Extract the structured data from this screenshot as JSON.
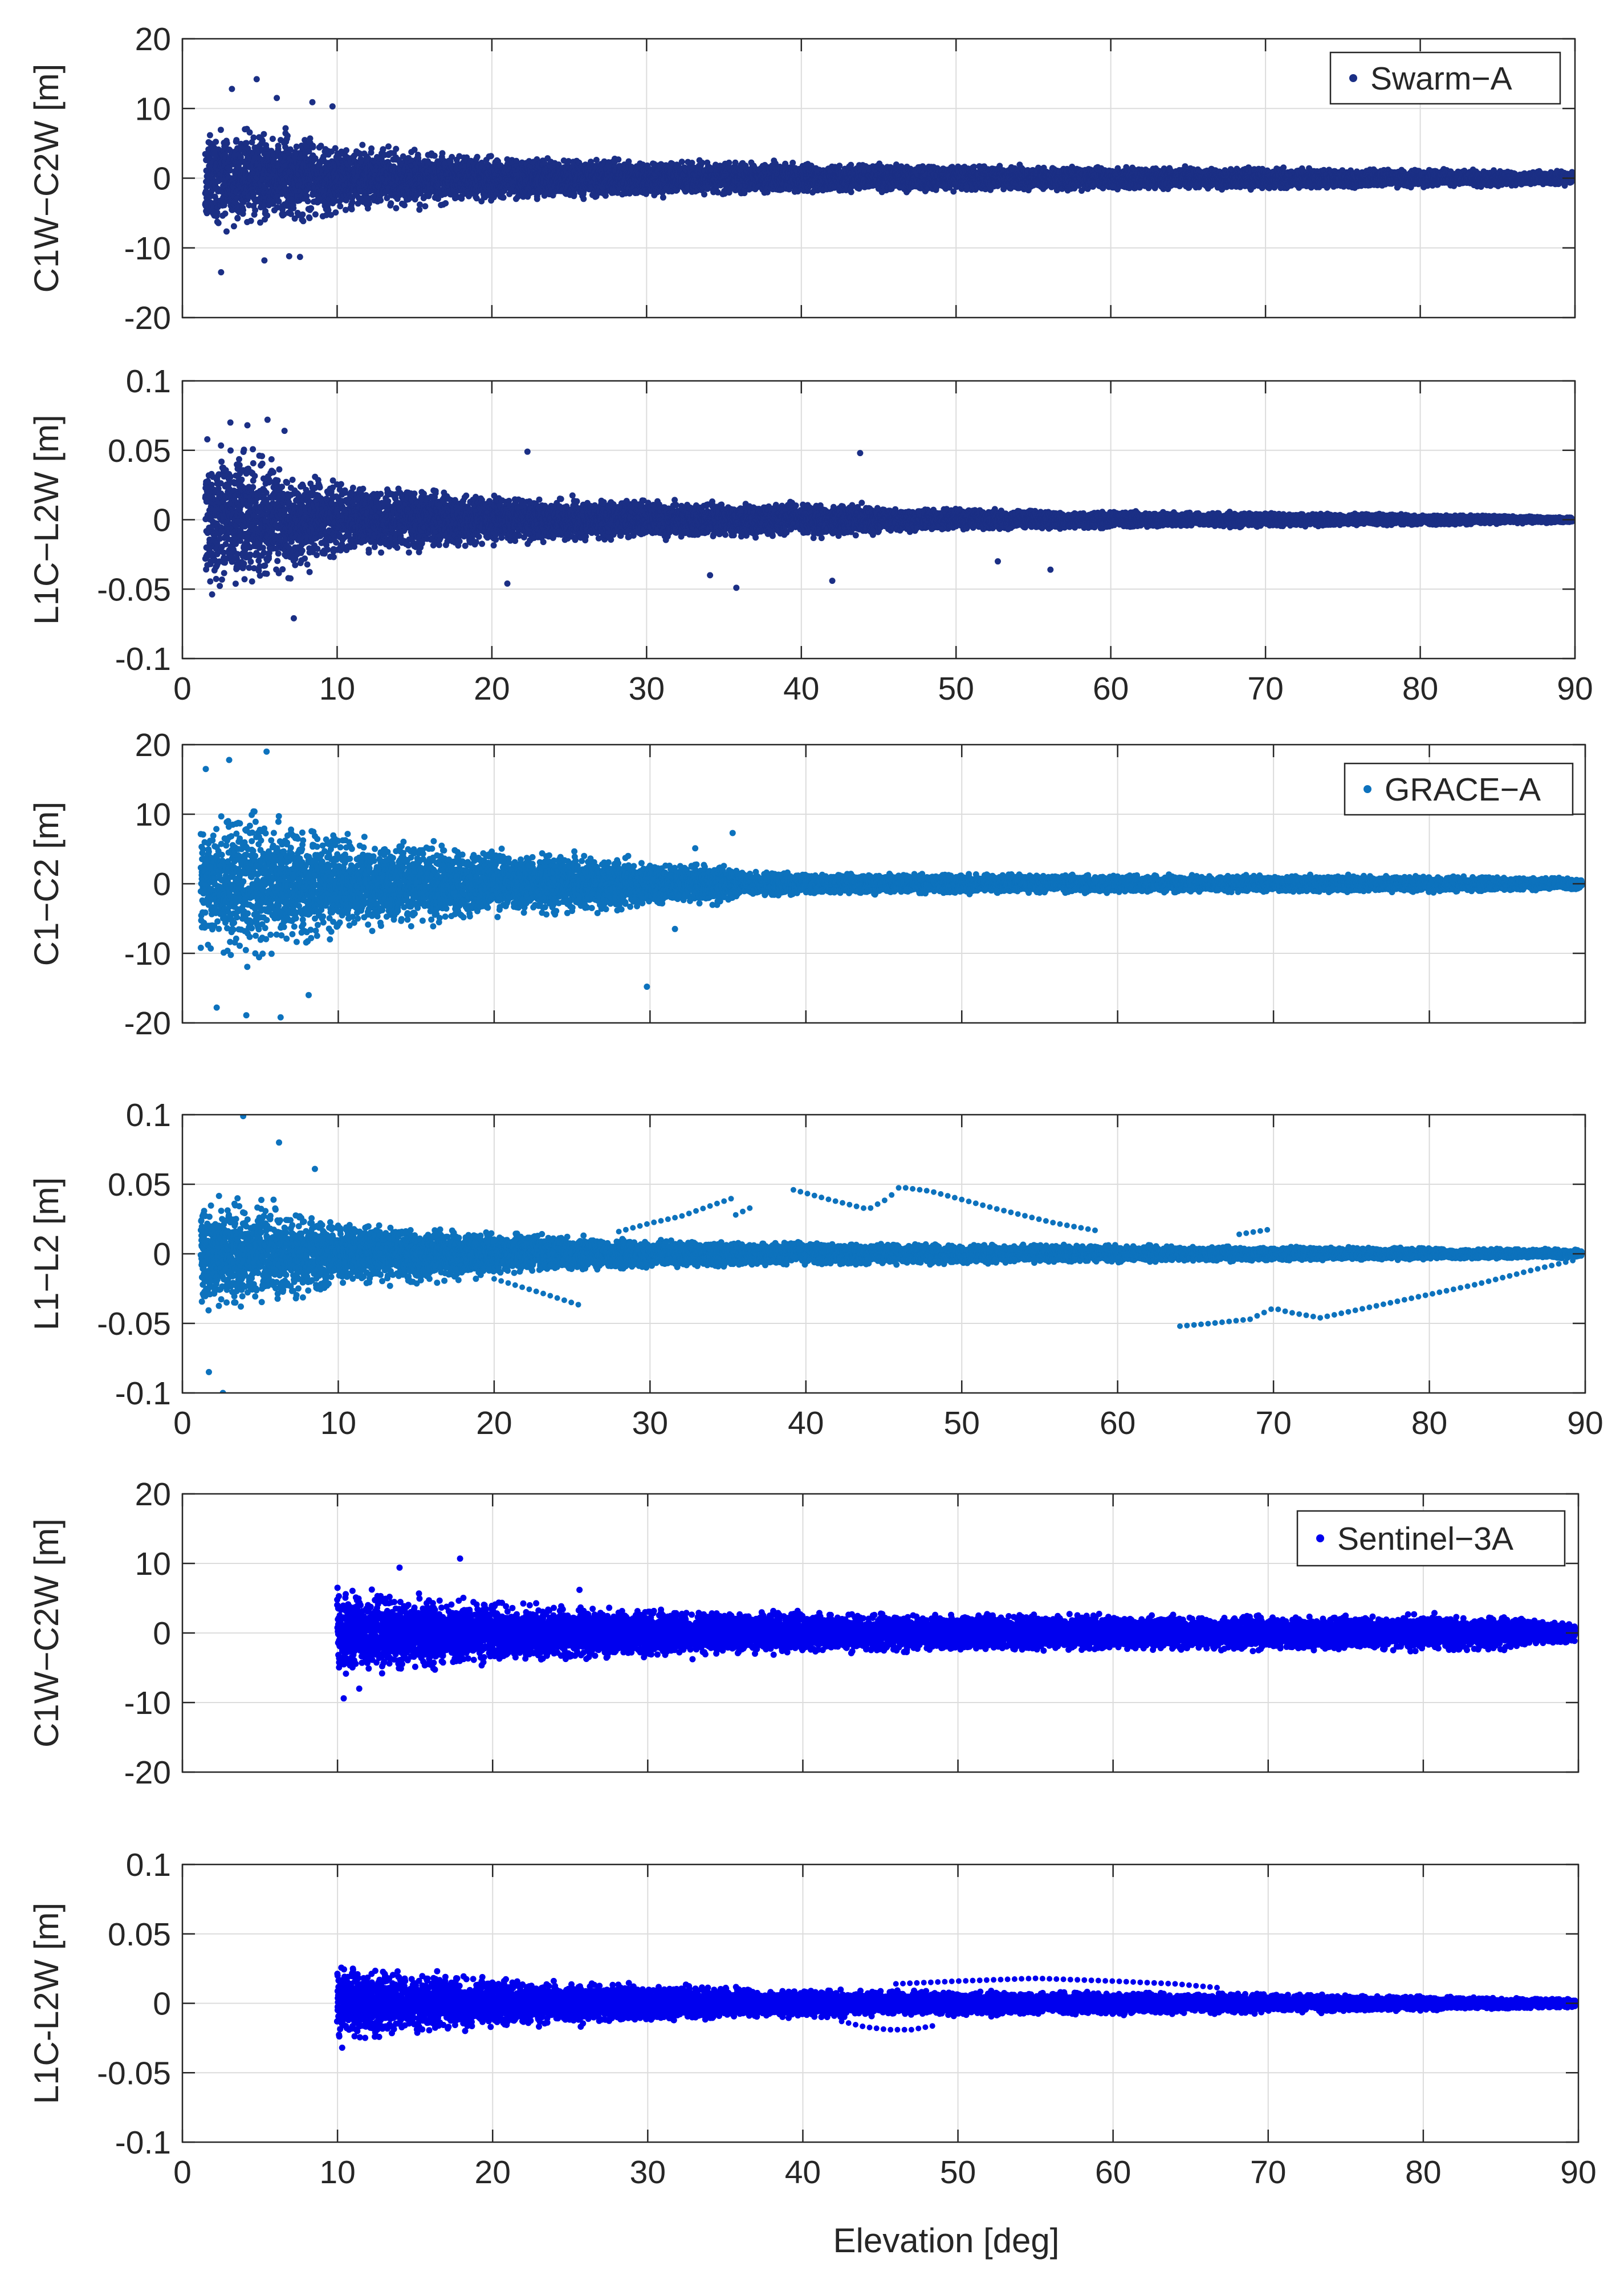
{
  "figure": {
    "xlabel": "Elevation [deg]"
  },
  "chart_data": [
    {
      "type": "scatter",
      "satellite": "Swarm-A",
      "legend": "Swarm−A",
      "color": "#1b2f85",
      "ylabel": "C1W−C2W [m]",
      "xlim": [
        0,
        90
      ],
      "ylim": [
        -20,
        20
      ],
      "xticks": [
        0,
        10,
        20,
        30,
        40,
        50,
        60,
        70,
        80,
        90
      ],
      "yticks": [
        20,
        10,
        0,
        -10,
        -20
      ],
      "ytick_labels": [
        "20",
        "10",
        "0",
        "-10",
        "-20"
      ],
      "show_xtick_labels": false,
      "envelope": {
        "x_start": 1.5,
        "x_end": 89.8,
        "half_width": [
          [
            1.5,
            7.5
          ],
          [
            7,
            7.0
          ],
          [
            10,
            5.0
          ],
          [
            20,
            3.2
          ],
          [
            30,
            2.6
          ],
          [
            40,
            2.2
          ],
          [
            50,
            1.9
          ],
          [
            60,
            1.7
          ],
          [
            70,
            1.5
          ],
          [
            80,
            1.3
          ],
          [
            90,
            1.0
          ]
        ]
      },
      "outliers": [
        [
          2.5,
          -13.5
        ],
        [
          3.2,
          12.8
        ],
        [
          4.8,
          14.2
        ],
        [
          6.1,
          11.5
        ],
        [
          5.3,
          -11.8
        ],
        [
          7.6,
          -11.3
        ],
        [
          8.4,
          10.9
        ],
        [
          9.7,
          10.3
        ],
        [
          6.9,
          -11.2
        ]
      ]
    },
    {
      "type": "scatter",
      "satellite": "Swarm-A",
      "legend": "",
      "color": "#1b2f85",
      "ylabel": "L1C−L2W [m]",
      "xlim": [
        0,
        90
      ],
      "ylim": [
        -0.1,
        0.1
      ],
      "xticks": [
        0,
        10,
        20,
        30,
        40,
        50,
        60,
        70,
        80,
        90
      ],
      "yticks": [
        0.1,
        0.05,
        0,
        -0.05,
        -0.1
      ],
      "ytick_labels": [
        "0.1",
        "0.05",
        "0",
        "-0.05",
        "-0.1"
      ],
      "show_xtick_labels": true,
      "envelope": {
        "x_start": 1.5,
        "x_end": 89.8,
        "half_width": [
          [
            1.5,
            0.055
          ],
          [
            5,
            0.05
          ],
          [
            10,
            0.028
          ],
          [
            20,
            0.018
          ],
          [
            30,
            0.014
          ],
          [
            40,
            0.012
          ],
          [
            44,
            0.013
          ],
          [
            45,
            0.009
          ],
          [
            50,
            0.008
          ],
          [
            60,
            0.006
          ],
          [
            70,
            0.005
          ],
          [
            80,
            0.004
          ],
          [
            90,
            0.002
          ]
        ]
      },
      "outliers": [
        [
          3.1,
          0.07
        ],
        [
          4.2,
          0.068
        ],
        [
          5.5,
          0.072
        ],
        [
          6.6,
          0.064
        ],
        [
          7.2,
          -0.071
        ],
        [
          22.3,
          0.049
        ],
        [
          21.0,
          -0.046
        ],
        [
          34.1,
          -0.04
        ],
        [
          43.8,
          0.048
        ],
        [
          42.0,
          -0.044
        ],
        [
          35.8,
          -0.049
        ],
        [
          52.7,
          -0.03
        ],
        [
          56.1,
          -0.036
        ]
      ]
    },
    {
      "type": "scatter",
      "satellite": "GRACE-A",
      "legend": "GRACE−A",
      "color": "#0d72bd",
      "ylabel": "C1−C2 [m]",
      "xlim": [
        0,
        90
      ],
      "ylim": [
        -20,
        20
      ],
      "xticks": [
        0,
        10,
        20,
        30,
        40,
        50,
        60,
        70,
        80,
        90
      ],
      "yticks": [
        20,
        10,
        0,
        -10,
        -20
      ],
      "ytick_labels": [
        "20",
        "10",
        "0",
        "-10",
        "-20"
      ],
      "show_xtick_labels": false,
      "envelope": {
        "x_start": 1.2,
        "x_end": 89.8,
        "half_width": [
          [
            1.2,
            10.0
          ],
          [
            5,
            11.0
          ],
          [
            10,
            7.5
          ],
          [
            15,
            6.0
          ],
          [
            20,
            5.0
          ],
          [
            25,
            4.5
          ],
          [
            28,
            4.0
          ],
          [
            30,
            3.0
          ],
          [
            35,
            2.8
          ],
          [
            36,
            1.8
          ],
          [
            40,
            1.5
          ],
          [
            50,
            1.4
          ],
          [
            60,
            1.3
          ],
          [
            70,
            1.2
          ],
          [
            80,
            1.2
          ],
          [
            90,
            0.8
          ]
        ]
      },
      "outliers": [
        [
          1.5,
          16.5
        ],
        [
          3.0,
          17.8
        ],
        [
          5.4,
          19.0
        ],
        [
          2.2,
          -17.8
        ],
        [
          4.1,
          -18.9
        ],
        [
          6.3,
          -19.2
        ],
        [
          8.1,
          -16.0
        ],
        [
          29.8,
          -14.8
        ],
        [
          31.6,
          -6.5
        ],
        [
          35.3,
          7.3
        ],
        [
          32.9,
          5.1
        ]
      ]
    },
    {
      "type": "scatter",
      "satellite": "GRACE-A",
      "legend": "",
      "color": "#0d72bd",
      "ylabel": "L1−L2 [m]",
      "xlim": [
        0,
        90
      ],
      "ylim": [
        -0.1,
        0.1
      ],
      "xticks": [
        0,
        10,
        20,
        30,
        40,
        50,
        60,
        70,
        80,
        90
      ],
      "yticks": [
        0.1,
        0.05,
        0,
        -0.05,
        -0.1
      ],
      "ytick_labels": [
        "0.1",
        "0.05",
        "0",
        "-0.05",
        "-0.1"
      ],
      "show_xtick_labels": true,
      "envelope": {
        "x_start": 1.2,
        "x_end": 89.8,
        "half_width": [
          [
            1.2,
            0.04
          ],
          [
            5,
            0.04
          ],
          [
            10,
            0.025
          ],
          [
            20,
            0.016
          ],
          [
            30,
            0.01
          ],
          [
            40,
            0.008
          ],
          [
            50,
            0.007
          ],
          [
            60,
            0.006
          ],
          [
            70,
            0.005
          ],
          [
            80,
            0.004
          ],
          [
            90,
            0.003
          ]
        ]
      },
      "outliers": [
        [
          3.9,
          0.099
        ],
        [
          2.6,
          -0.1
        ],
        [
          1.7,
          -0.085
        ],
        [
          6.2,
          0.08
        ],
        [
          8.5,
          0.061
        ]
      ],
      "tracks": [
        [
          [
            28.0,
            0.016
          ],
          [
            30.0,
            0.022
          ],
          [
            32.0,
            0.027
          ],
          [
            34.0,
            0.035
          ],
          [
            35.3,
            0.04
          ]
        ],
        [
          [
            35.5,
            0.028
          ],
          [
            36.8,
            0.035
          ]
        ],
        [
          [
            39.2,
            0.046
          ],
          [
            41.5,
            0.039
          ],
          [
            44.0,
            0.032
          ],
          [
            45.3,
            0.04
          ],
          [
            46.0,
            0.048
          ],
          [
            48.0,
            0.045
          ],
          [
            52.0,
            0.033
          ],
          [
            56.0,
            0.022
          ],
          [
            59.0,
            0.016
          ]
        ],
        [
          [
            67.8,
            0.014
          ],
          [
            70.0,
            0.018
          ]
        ],
        [
          [
            20.0,
            -0.018
          ],
          [
            23.0,
            -0.028
          ],
          [
            25.8,
            -0.038
          ]
        ],
        [
          [
            64.0,
            -0.052
          ],
          [
            66.0,
            -0.05
          ],
          [
            68.5,
            -0.047
          ],
          [
            70.0,
            -0.039
          ],
          [
            71.0,
            -0.042
          ],
          [
            73.0,
            -0.046
          ],
          [
            78.0,
            -0.034
          ],
          [
            83.0,
            -0.022
          ],
          [
            86.5,
            -0.012
          ],
          [
            89.5,
            -0.004
          ]
        ]
      ]
    },
    {
      "type": "scatter",
      "satellite": "Sentinel-3A",
      "legend": "Sentinel−3A",
      "color": "#0000ee",
      "ylabel": "C1W−C2W [m]",
      "xlim": [
        0,
        90
      ],
      "ylim": [
        -20,
        20
      ],
      "xticks": [
        0,
        10,
        20,
        30,
        40,
        50,
        60,
        70,
        80,
        90
      ],
      "yticks": [
        20,
        10,
        0,
        -10,
        -20
      ],
      "ytick_labels": [
        "20",
        "10",
        "0",
        "-10",
        "-20"
      ],
      "show_xtick_labels": false,
      "envelope": {
        "x_start": 10.0,
        "x_end": 89.8,
        "half_width": [
          [
            10,
            7.0
          ],
          [
            15,
            5.5
          ],
          [
            20,
            4.5
          ],
          [
            30,
            3.5
          ],
          [
            40,
            3.0
          ],
          [
            50,
            2.7
          ],
          [
            60,
            2.6
          ],
          [
            70,
            2.5
          ],
          [
            80,
            2.6
          ],
          [
            85,
            2.4
          ],
          [
            90,
            1.2
          ]
        ]
      },
      "outliers": [
        [
          17.9,
          10.7
        ],
        [
          14.0,
          9.4
        ],
        [
          10.4,
          -9.4
        ],
        [
          11.4,
          -8.0
        ],
        [
          25.6,
          6.2
        ]
      ]
    },
    {
      "type": "scatter",
      "satellite": "Sentinel-3A",
      "legend": "",
      "color": "#0000ee",
      "ylabel": "L1C-L2W [m]",
      "xlim": [
        0,
        90
      ],
      "ylim": [
        -0.1,
        0.1
      ],
      "xticks": [
        0,
        10,
        20,
        30,
        40,
        50,
        60,
        70,
        80,
        90
      ],
      "yticks": [
        0.1,
        0.05,
        0,
        -0.05,
        -0.1
      ],
      "ytick_labels": [
        "0.1",
        "0.05",
        "0",
        "-0.05",
        "-0.1"
      ],
      "show_xtick_labels": true,
      "envelope": {
        "x_start": 10.0,
        "x_end": 89.8,
        "half_width": [
          [
            10,
            0.028
          ],
          [
            20,
            0.018
          ],
          [
            30,
            0.013
          ],
          [
            40,
            0.01
          ],
          [
            50,
            0.009
          ],
          [
            60,
            0.008
          ],
          [
            70,
            0.007
          ],
          [
            80,
            0.005
          ],
          [
            90,
            0.003
          ]
        ]
      },
      "outliers": [
        [
          10.3,
          -0.032
        ]
      ],
      "tracks": [
        [
          [
            42.5,
            -0.013
          ],
          [
            44.0,
            -0.017
          ],
          [
            45.5,
            -0.019
          ],
          [
            47.0,
            -0.019
          ],
          [
            48.5,
            -0.016
          ]
        ],
        [
          [
            46.0,
            0.014
          ],
          [
            50.0,
            0.016
          ],
          [
            55.0,
            0.018
          ],
          [
            60.0,
            0.016
          ],
          [
            64.0,
            0.014
          ],
          [
            67.0,
            0.011
          ]
        ]
      ]
    }
  ]
}
